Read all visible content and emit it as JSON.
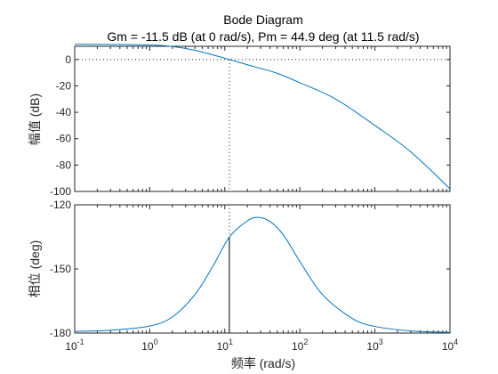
{
  "chart_data": {
    "type": "line",
    "title": "Bode Diagram",
    "subtitle": "Gm = -11.5 dB (at 0 rad/s),  Pm = 44.9 deg (at 11.5 rad/s)",
    "xlabel": "频率  (rad/s)",
    "xscale": "log",
    "xlim": [
      0.1,
      10000
    ],
    "x_ticks": [
      0.1,
      1,
      10,
      100,
      1000,
      10000
    ],
    "x_tick_labels": [
      {
        "base": "10",
        "exp": "-1"
      },
      {
        "base": "10",
        "exp": "0"
      },
      {
        "base": "10",
        "exp": "1"
      },
      {
        "base": "10",
        "exp": "2"
      },
      {
        "base": "10",
        "exp": "3"
      },
      {
        "base": "10",
        "exp": "4"
      }
    ],
    "grid": false,
    "colors": {
      "line": "#0072BD",
      "marker": "#000000",
      "axes": "#262626"
    },
    "magnitude": {
      "ylabel": "幅值 (dB)",
      "ylim": [
        -100,
        10
      ],
      "y_ticks": [
        0,
        -20,
        -40,
        -60,
        -80,
        -100
      ],
      "y_tick_labels": [
        "0",
        "-20",
        "-40",
        "-60",
        "-80",
        "-100"
      ],
      "zero_reference_line": 0,
      "crossover_frequency": 11.5,
      "series": {
        "x": [
          0.1,
          0.3,
          1,
          2,
          4,
          7,
          11.5,
          20,
          30,
          50,
          100,
          300,
          1000,
          3000,
          10000
        ],
        "values": [
          11.5,
          11.4,
          11,
          9.8,
          7,
          3.4,
          0,
          -4,
          -6.7,
          -10.5,
          -17.6,
          -30,
          -50,
          -70,
          -98
        ]
      }
    },
    "phase": {
      "ylabel": "相位 (deg)",
      "ylim": [
        -180,
        -120
      ],
      "y_ticks": [
        -120,
        -150,
        -180
      ],
      "y_tick_labels": [
        "-120",
        "-150",
        "-180"
      ],
      "phase_margin_marker": {
        "frequency": 11.5,
        "from": -180,
        "to": -135.1
      },
      "series": {
        "x": [
          0.1,
          0.3,
          1,
          2,
          4,
          7,
          11.5,
          20,
          28,
          40,
          60,
          100,
          200,
          500,
          1000,
          3000,
          10000
        ],
        "values": [
          -179.2,
          -178.7,
          -176.7,
          -172.5,
          -162,
          -148.5,
          -135.1,
          -127.5,
          -125.9,
          -127.8,
          -134,
          -146.5,
          -162,
          -173.2,
          -176.9,
          -179.0,
          -179.7
        ]
      }
    }
  }
}
